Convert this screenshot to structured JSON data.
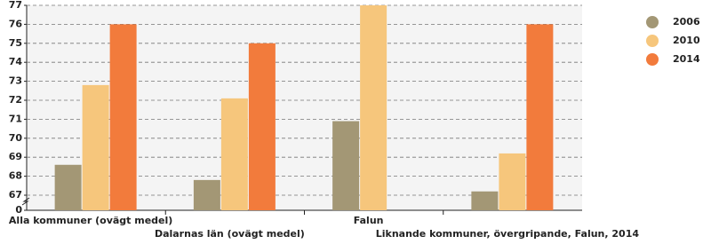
{
  "chart_data": {
    "type": "bar",
    "categories": [
      "Alla kommuner (ovägt medel)",
      "Dalarnas län (ovägt medel)",
      "Falun",
      "Liknande kommuner, övergripande, Falun, 2014"
    ],
    "series": [
      {
        "name": "2006",
        "color": "#a39775",
        "values": [
          68.6,
          67.8,
          70.9,
          67.2
        ]
      },
      {
        "name": "2010",
        "color": "#f6c67c",
        "values": [
          72.8,
          72.1,
          77.0,
          69.2
        ]
      },
      {
        "name": "2014",
        "color": "#f27b3c",
        "values": [
          76.0,
          75.0,
          null,
          76.0
        ]
      }
    ],
    "ylim": [
      0,
      77
    ],
    "axis_break": [
      0,
      67
    ],
    "yticks": [
      0,
      67,
      68,
      69,
      70,
      71,
      72,
      73,
      74,
      75,
      76,
      77
    ],
    "grid": true,
    "legend": "right"
  }
}
